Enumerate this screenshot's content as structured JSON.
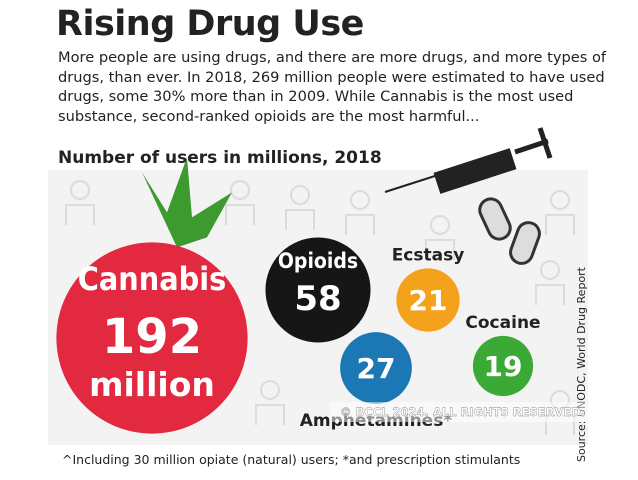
{
  "chart_data": {
    "type": "bubble",
    "title": "Rising Drug Use",
    "subtitle": "More people are using drugs, and there are more drugs, and more types of drugs, than ever. In 2018, 269 million people were estimated to have used drugs, some 30% more than in 2009. While Cannabis is the most used substance, second-ranked opioids are the most harmful...",
    "chart_title": "Number of users in millions, 2018",
    "categories": [
      "Cannabis",
      "Opioids",
      "Ecstasy",
      "Amphetamines*",
      "Cocaine"
    ],
    "values": [
      192,
      58,
      21,
      27,
      19
    ],
    "colors": [
      "#e3293f",
      "#161616",
      "#f4a11c",
      "#1b78b5",
      "#3aa935"
    ],
    "unit_label": "million",
    "footnote": "^Including 30 million opiate (natural) users; *and prescription stimulants",
    "source": "Source: UNODC, World Drug Report",
    "watermark": "© BCCL 2024. ALL RIGHTS RESERVED."
  }
}
